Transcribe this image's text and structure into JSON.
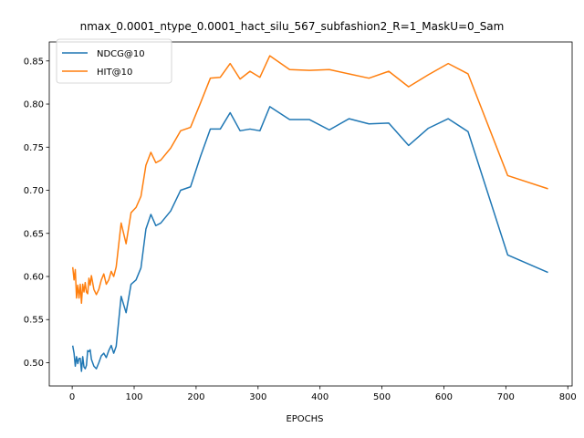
{
  "chart_data": {
    "type": "line",
    "title": "nmax_0.0001_ntype_0.0001_hact_silu_567_subfashion2_R=1_MaskU=0_Sam",
    "xlabel": "EPOCHS",
    "ylabel": "",
    "xlim": [
      -37,
      807
    ],
    "ylim": [
      0.473,
      0.872
    ],
    "x_ticks": [
      0,
      100,
      200,
      300,
      400,
      500,
      600,
      700,
      800
    ],
    "y_ticks": [
      0.5,
      0.55,
      0.6,
      0.65,
      0.7,
      0.75,
      0.8,
      0.85
    ],
    "x_tick_labels": [
      "0",
      "100",
      "200",
      "300",
      "400",
      "500",
      "600",
      "700",
      "800"
    ],
    "y_tick_labels": [
      "0.50",
      "0.55",
      "0.60",
      "0.65",
      "0.70",
      "0.75",
      "0.80",
      "0.85"
    ],
    "grid": false,
    "legend_position": "upper-left",
    "series": [
      {
        "name": "NDCG@10",
        "color": "#1f77b4",
        "x": [
          1,
          3,
          5,
          7,
          9,
          11,
          13,
          15,
          17,
          19,
          21,
          23,
          25,
          27,
          29,
          31,
          35,
          39,
          43,
          47,
          51,
          55,
          59,
          63,
          67,
          71,
          79,
          87,
          95,
          103,
          111,
          119,
          127,
          135,
          143,
          159,
          175,
          191,
          207,
          223,
          239,
          255,
          271,
          287,
          303,
          319,
          351,
          383,
          415,
          447,
          479,
          511,
          543,
          575,
          607,
          639,
          703,
          767
        ],
        "y": [
          0.519,
          0.511,
          0.496,
          0.507,
          0.499,
          0.505,
          0.505,
          0.49,
          0.507,
          0.495,
          0.493,
          0.497,
          0.514,
          0.513,
          0.515,
          0.504,
          0.496,
          0.493,
          0.5,
          0.508,
          0.511,
          0.506,
          0.514,
          0.52,
          0.511,
          0.519,
          0.577,
          0.558,
          0.591,
          0.596,
          0.61,
          0.655,
          0.672,
          0.659,
          0.662,
          0.676,
          0.7,
          0.704,
          0.739,
          0.771,
          0.771,
          0.79,
          0.769,
          0.771,
          0.769,
          0.797,
          0.782,
          0.782,
          0.77,
          0.783,
          0.777,
          0.778,
          0.752,
          0.772,
          0.783,
          0.768,
          0.625,
          0.605
        ]
      },
      {
        "name": "HIT@10",
        "color": "#ff7f0e",
        "x": [
          1,
          3,
          5,
          7,
          9,
          11,
          13,
          15,
          17,
          19,
          21,
          23,
          25,
          27,
          29,
          31,
          35,
          39,
          43,
          47,
          51,
          55,
          59,
          63,
          67,
          71,
          79,
          87,
          95,
          103,
          111,
          119,
          127,
          135,
          143,
          159,
          175,
          191,
          207,
          223,
          239,
          255,
          271,
          287,
          303,
          319,
          351,
          383,
          415,
          447,
          479,
          511,
          543,
          575,
          607,
          639,
          703,
          767
        ],
        "y": [
          0.61,
          0.596,
          0.608,
          0.575,
          0.59,
          0.575,
          0.591,
          0.569,
          0.591,
          0.582,
          0.593,
          0.582,
          0.58,
          0.598,
          0.59,
          0.601,
          0.585,
          0.579,
          0.585,
          0.596,
          0.603,
          0.591,
          0.596,
          0.606,
          0.6,
          0.611,
          0.662,
          0.638,
          0.674,
          0.68,
          0.693,
          0.729,
          0.744,
          0.732,
          0.735,
          0.749,
          0.769,
          0.773,
          0.801,
          0.83,
          0.831,
          0.847,
          0.829,
          0.838,
          0.831,
          0.856,
          0.84,
          0.839,
          0.84,
          0.835,
          0.83,
          0.838,
          0.82,
          0.834,
          0.847,
          0.835,
          0.717,
          0.702
        ]
      }
    ]
  }
}
